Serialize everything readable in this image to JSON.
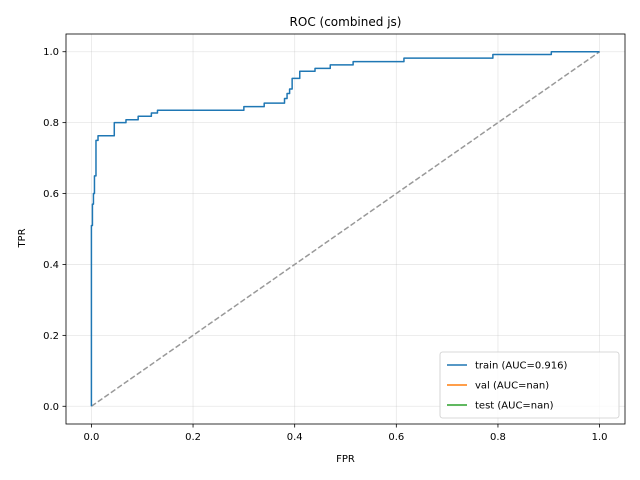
{
  "chart_data": {
    "type": "line",
    "title": "ROC (combined js)",
    "xlabel": "FPR",
    "ylabel": "TPR",
    "xlim": [
      -0.05,
      1.05
    ],
    "ylim": [
      -0.05,
      1.05
    ],
    "xticks": [
      0.0,
      0.2,
      0.4,
      0.6,
      0.8,
      1.0
    ],
    "yticks": [
      0.0,
      0.2,
      0.4,
      0.6,
      0.8,
      1.0
    ],
    "xtick_labels": [
      "0.0",
      "0.2",
      "0.4",
      "0.6",
      "0.8",
      "1.0"
    ],
    "ytick_labels": [
      "0.0",
      "0.2",
      "0.4",
      "0.6",
      "0.8",
      "1.0"
    ],
    "grid": true,
    "legend_position": "lower-right",
    "series": [
      {
        "name": "train (AUC=0.916)",
        "color": "#1f77b4",
        "x": [
          0.0,
          0.0,
          0.002,
          0.002,
          0.004,
          0.004,
          0.006,
          0.006,
          0.009,
          0.009,
          0.013,
          0.013,
          0.017,
          0.017,
          0.045,
          0.045,
          0.068,
          0.068,
          0.092,
          0.092,
          0.118,
          0.118,
          0.13,
          0.13,
          0.3,
          0.3,
          0.34,
          0.34,
          0.38,
          0.38,
          0.385,
          0.385,
          0.39,
          0.39,
          0.395,
          0.395,
          0.41,
          0.41,
          0.44,
          0.44,
          0.47,
          0.47,
          0.515,
          0.515,
          0.615,
          0.615,
          0.79,
          0.79,
          0.905,
          0.905,
          1.0
        ],
        "y": [
          0.0,
          0.51,
          0.51,
          0.57,
          0.57,
          0.6,
          0.6,
          0.65,
          0.65,
          0.75,
          0.75,
          0.763,
          0.763,
          0.763,
          0.763,
          0.8,
          0.8,
          0.808,
          0.808,
          0.818,
          0.818,
          0.827,
          0.827,
          0.835,
          0.835,
          0.845,
          0.845,
          0.855,
          0.855,
          0.868,
          0.868,
          0.882,
          0.882,
          0.895,
          0.895,
          0.925,
          0.925,
          0.945,
          0.945,
          0.953,
          0.953,
          0.963,
          0.963,
          0.972,
          0.972,
          0.982,
          0.982,
          0.992,
          0.992,
          1.0,
          1.0
        ]
      },
      {
        "name": "val (AUC=nan)",
        "color": "#ff7f0e",
        "x": [],
        "y": []
      },
      {
        "name": "test (AUC=nan)",
        "color": "#2ca02c",
        "x": [],
        "y": []
      }
    ],
    "reference_line": {
      "x": [
        0,
        1
      ],
      "y": [
        0,
        1
      ],
      "color": "#999999",
      "style": "dashed"
    }
  }
}
